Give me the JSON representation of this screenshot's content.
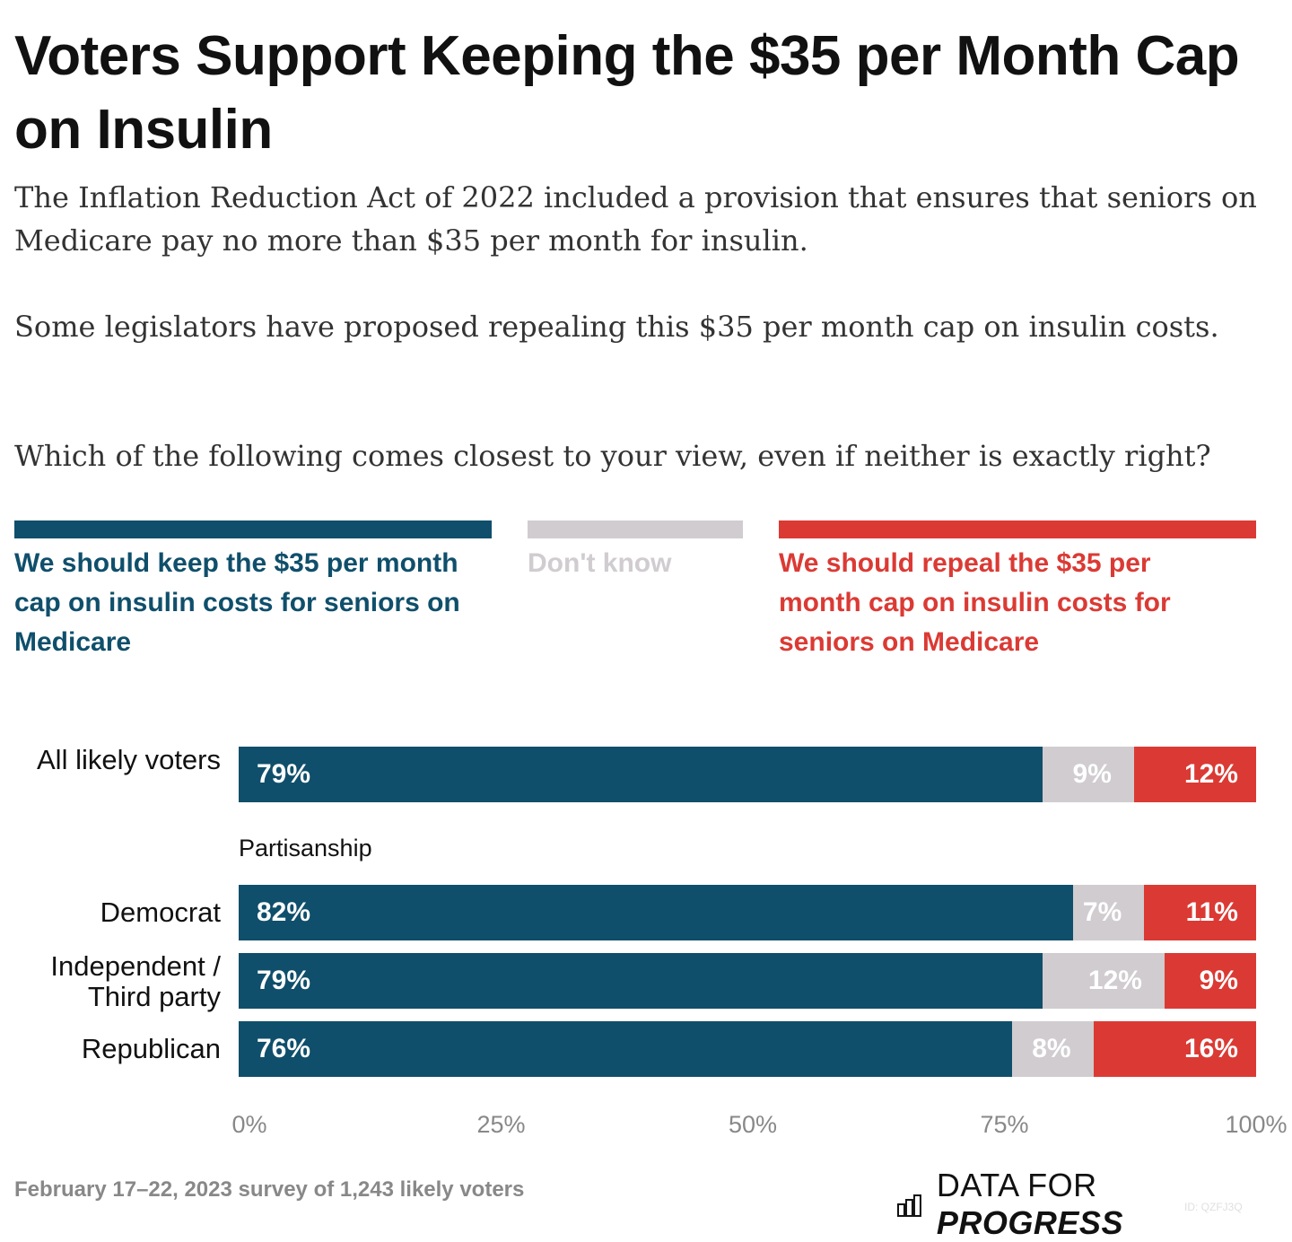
{
  "title": "Voters Support Keeping the $35 per Month Cap on Insulin",
  "subtitle": [
    "The Inflation Reduction Act of 2022 included a provision that ensures that seniors on Medicare pay no more than $35 per month for insulin.",
    "Some legislators have proposed repealing this $35 per month cap on insulin costs.",
    "Which of the following comes closest to your view, even if neither is exactly right?"
  ],
  "footer": "February 17–22, 2023 survey of 1,243 likely voters",
  "logo": {
    "light": "DATA FOR",
    "bold": "PROGRESS"
  },
  "chart_id": "ID: QZFJ3Q",
  "colors": {
    "keep": "#0f4f6b",
    "dont_know": "#d0ccd0",
    "repeal": "#db3a34"
  },
  "chart_data": {
    "type": "bar",
    "orientation": "horizontal",
    "stacked": true,
    "legend_position": "top",
    "series": [
      {
        "name": "We should keep the $35 per month cap on insulin costs for seniors on Medicare",
        "values": [
          79,
          82,
          79,
          76
        ]
      },
      {
        "name": "Don't know",
        "values": [
          9,
          7,
          12,
          8
        ]
      },
      {
        "name": "We should repeal the $35 per month cap on insulin costs for seniors on Medicare",
        "values": [
          12,
          11,
          9,
          16
        ]
      }
    ],
    "categories": [
      "All likely voters",
      "Democrat",
      "Independent / Third party",
      "Republican"
    ],
    "group_label": "Partisanship",
    "data_labels": [
      [
        "79%",
        "9%",
        "12%"
      ],
      [
        "82%",
        "7%",
        "11%"
      ],
      [
        "79%",
        "12%",
        "9%"
      ],
      [
        "76%",
        "8%",
        "16%"
      ]
    ],
    "xlim": [
      0,
      100
    ],
    "xticks": [
      "0%",
      "25%",
      "50%",
      "75%",
      "100%"
    ],
    "grid": false
  }
}
